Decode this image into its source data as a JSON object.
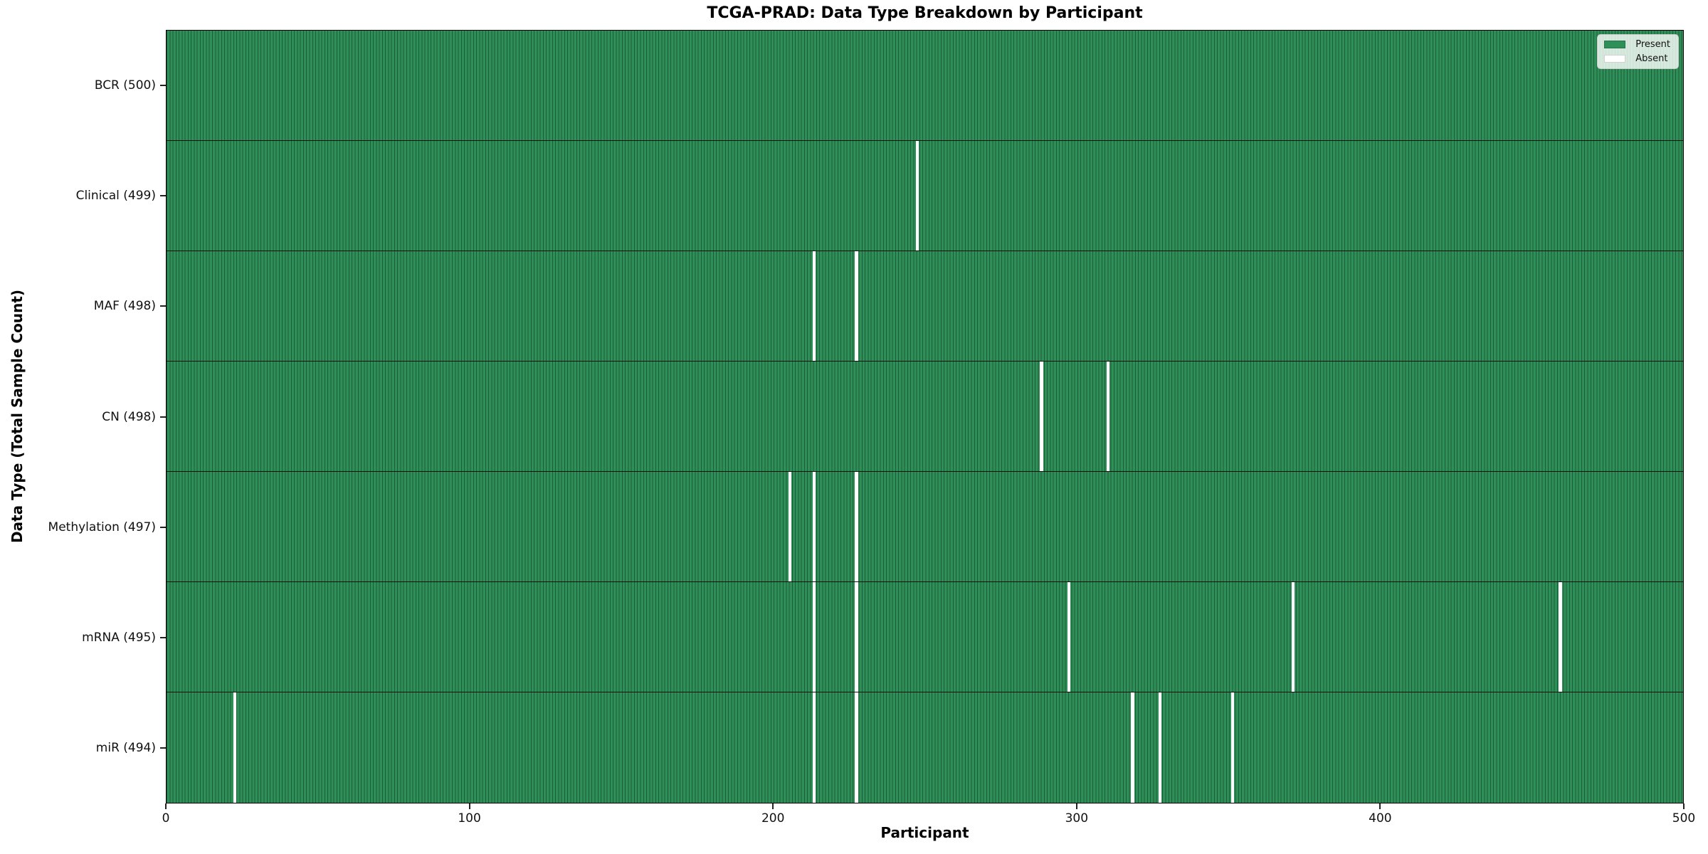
{
  "chart_data": {
    "type": "heatmap",
    "title": "TCGA-PRAD: Data Type Breakdown by Participant",
    "xlabel": "Participant",
    "ylabel": "Data Type (Total Sample Count)",
    "xlim": [
      0,
      500
    ],
    "xticks": [
      0,
      100,
      200,
      300,
      400,
      500
    ],
    "n_participants": 500,
    "grid": false,
    "colors": {
      "present": "#2f8f58",
      "cell_edge": "#1d5c38",
      "absent": "#ffffff",
      "row_separator": "#000000"
    },
    "legend": {
      "position": "upper right",
      "entries": [
        {
          "label": "Present",
          "color": "#2f8f58"
        },
        {
          "label": "Absent",
          "color": "#ffffff"
        }
      ]
    },
    "rows": [
      {
        "label": "BCR (500)",
        "data_type": "BCR",
        "total": 500,
        "absent_participants": []
      },
      {
        "label": "Clinical (499)",
        "data_type": "Clinical",
        "total": 499,
        "absent_participants": [
          247
        ]
      },
      {
        "label": "MAF (498)",
        "data_type": "MAF",
        "total": 498,
        "absent_participants": [
          213,
          227
        ]
      },
      {
        "label": "CN (498)",
        "data_type": "CN",
        "total": 498,
        "absent_participants": [
          288,
          310
        ]
      },
      {
        "label": "Methylation (497)",
        "data_type": "Methylation",
        "total": 497,
        "absent_participants": [
          205,
          213,
          227
        ]
      },
      {
        "label": "mRNA (495)",
        "data_type": "mRNA",
        "total": 495,
        "absent_participants": [
          213,
          227,
          297,
          371,
          459
        ]
      },
      {
        "label": "miR (494)",
        "data_type": "miR",
        "total": 494,
        "absent_participants": [
          22,
          213,
          227,
          318,
          327,
          351
        ]
      }
    ]
  }
}
